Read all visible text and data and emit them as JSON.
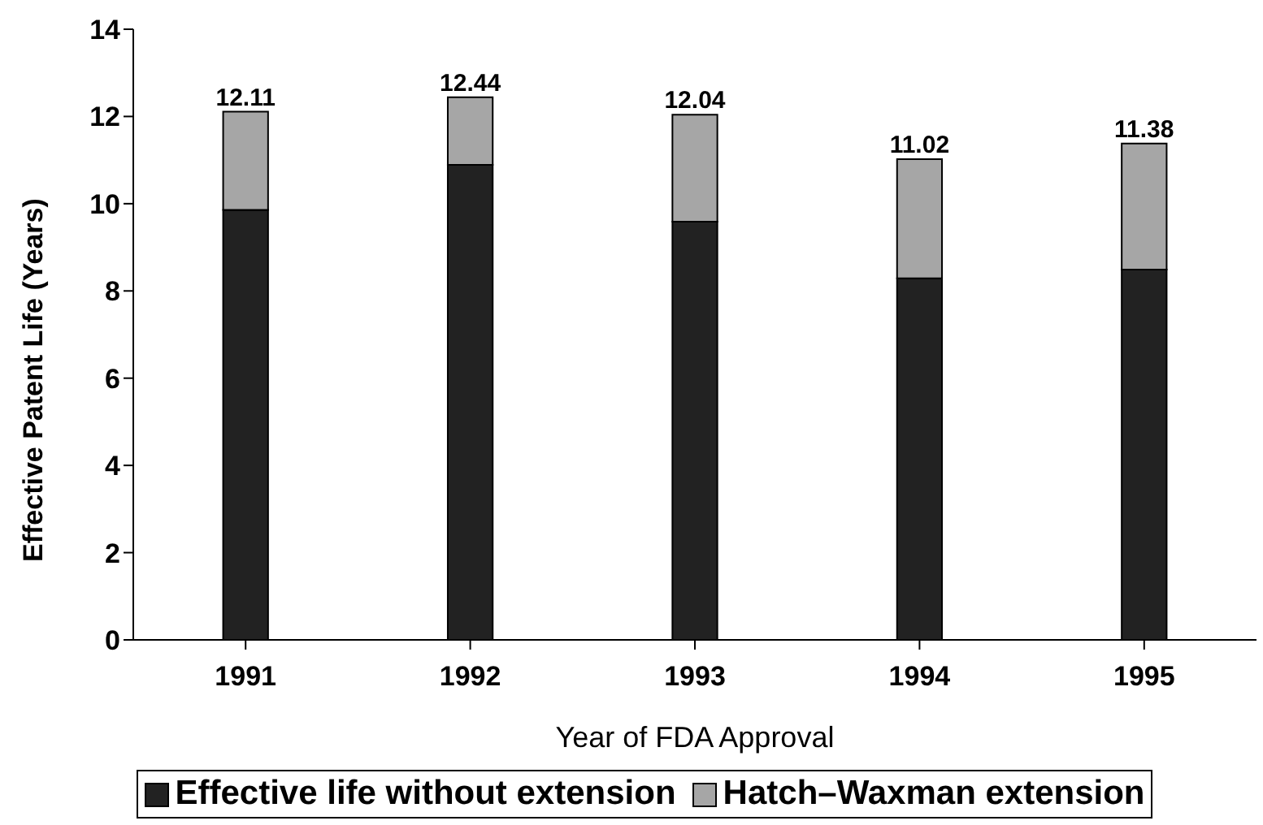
{
  "chart_data": {
    "type": "bar",
    "stacked": true,
    "xlabel": "Year of FDA Approval",
    "ylabel": "Effective Patent Life (Years)",
    "categories": [
      "1991",
      "1992",
      "1993",
      "1994",
      "1995"
    ],
    "series": [
      {
        "name": "Effective life without extension",
        "color": "#222222",
        "values": [
          9.86,
          10.89,
          9.59,
          8.29,
          8.49
        ]
      },
      {
        "name": "Hatch–Waxman extension",
        "color": "#a6a6a6",
        "values": [
          2.25,
          1.55,
          2.45,
          2.73,
          2.89
        ]
      }
    ],
    "totals": [
      "12.11",
      "12.44",
      "12.04",
      "11.02",
      "11.38"
    ],
    "ylim": [
      0,
      14
    ],
    "yticks": [
      0,
      2,
      4,
      6,
      8,
      10,
      12,
      14
    ],
    "grid": false,
    "legend": "bottom"
  }
}
